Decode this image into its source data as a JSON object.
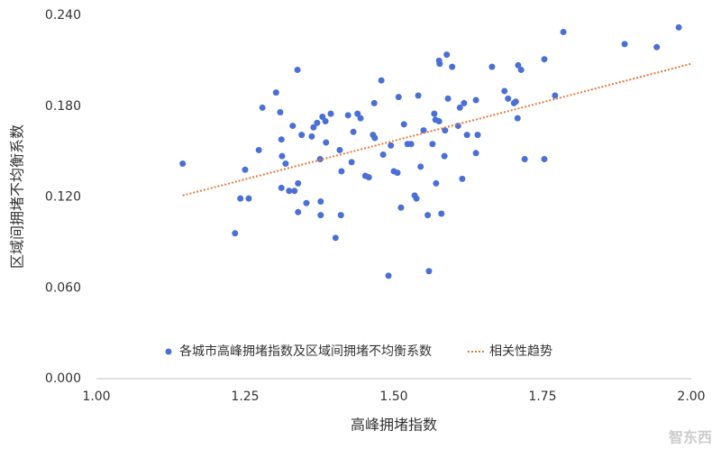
{
  "chart_data": {
    "type": "scatter",
    "x_label": "高峰拥堵指数",
    "y_label": "区域间拥堵不均衡系数",
    "watermark": "智东西",
    "legend": "bottom",
    "xlim": [
      1.0,
      2.0
    ],
    "ylim": [
      0,
      0.24
    ],
    "xticks": [
      {
        "value": 1.0,
        "label": "1.00"
      },
      1.25,
      {
        "value": 1.5,
        "label": "1.50"
      },
      1.75,
      {
        "value": 2.0,
        "label": "2.00"
      }
    ],
    "yticks": [
      {
        "value": 0,
        "label": "0.000"
      },
      {
        "value": 0.06,
        "label": "0.060"
      },
      {
        "value": 0.12,
        "label": "0.120"
      },
      {
        "value": 0.18,
        "label": "0.180"
      },
      {
        "value": 0.24,
        "label": "0.240"
      }
    ],
    "series": [
      {
        "name": "各城市高峰拥堵指数及区域间拥堵不均衡系数",
        "type": "scatter",
        "color": "#4a6fd6",
        "x": [
          1.145,
          1.233,
          1.242,
          1.25,
          1.256,
          1.273,
          1.279,
          1.302,
          1.309,
          1.311,
          1.312,
          1.311,
          1.318,
          1.324,
          1.33,
          1.333,
          1.338,
          1.339,
          1.339,
          1.345,
          1.353,
          1.362,
          1.365,
          1.371,
          1.376,
          1.377,
          1.377,
          1.38,
          1.385,
          1.386,
          1.394,
          1.402,
          1.409,
          1.411,
          1.412,
          1.423,
          1.429,
          1.432,
          1.439,
          1.444,
          1.452,
          1.458,
          1.465,
          1.467,
          1.468,
          1.479,
          1.482,
          1.491,
          1.495,
          1.5,
          1.506,
          1.508,
          1.512,
          1.517,
          1.523,
          1.529,
          1.535,
          1.538,
          1.541,
          1.545,
          1.55,
          1.557,
          1.559,
          1.565,
          1.568,
          1.57,
          1.571,
          1.577,
          1.576,
          1.576,
          1.58,
          1.585,
          1.586,
          1.589,
          1.591,
          1.598,
          1.608,
          1.611,
          1.615,
          1.618,
          1.623,
          1.638,
          1.638,
          1.641,
          1.665,
          1.686,
          1.692,
          1.702,
          1.705,
          1.708,
          1.709,
          1.714,
          1.72,
          1.753,
          1.753,
          1.771,
          1.785,
          1.888,
          1.942,
          1.979
        ],
        "values": [
          0.142,
          0.096,
          0.119,
          0.138,
          0.119,
          0.151,
          0.179,
          0.189,
          0.176,
          0.158,
          0.147,
          0.126,
          0.142,
          0.124,
          0.167,
          0.124,
          0.204,
          0.11,
          0.129,
          0.161,
          0.116,
          0.16,
          0.166,
          0.169,
          0.145,
          0.117,
          0.108,
          0.173,
          0.17,
          0.156,
          0.175,
          0.093,
          0.151,
          0.108,
          0.137,
          0.174,
          0.143,
          0.163,
          0.175,
          0.172,
          0.134,
          0.133,
          0.161,
          0.182,
          0.159,
          0.197,
          0.148,
          0.068,
          0.154,
          0.137,
          0.136,
          0.186,
          0.113,
          0.168,
          0.155,
          0.155,
          0.121,
          0.119,
          0.187,
          0.14,
          0.164,
          0.108,
          0.071,
          0.155,
          0.175,
          0.171,
          0.129,
          0.208,
          0.21,
          0.17,
          0.109,
          0.147,
          0.164,
          0.214,
          0.185,
          0.206,
          0.167,
          0.179,
          0.132,
          0.182,
          0.161,
          0.149,
          0.184,
          0.161,
          0.206,
          0.19,
          0.185,
          0.182,
          0.183,
          0.172,
          0.207,
          0.204,
          0.145,
          0.145,
          0.211,
          0.187,
          0.229,
          0.221,
          0.219,
          0.232
        ]
      },
      {
        "name": "相关性趋势",
        "type": "line",
        "dashed": true,
        "color": "#e07b3f",
        "x": [
          1.145,
          2.0
        ],
        "values": [
          0.121,
          0.208
        ]
      }
    ]
  }
}
